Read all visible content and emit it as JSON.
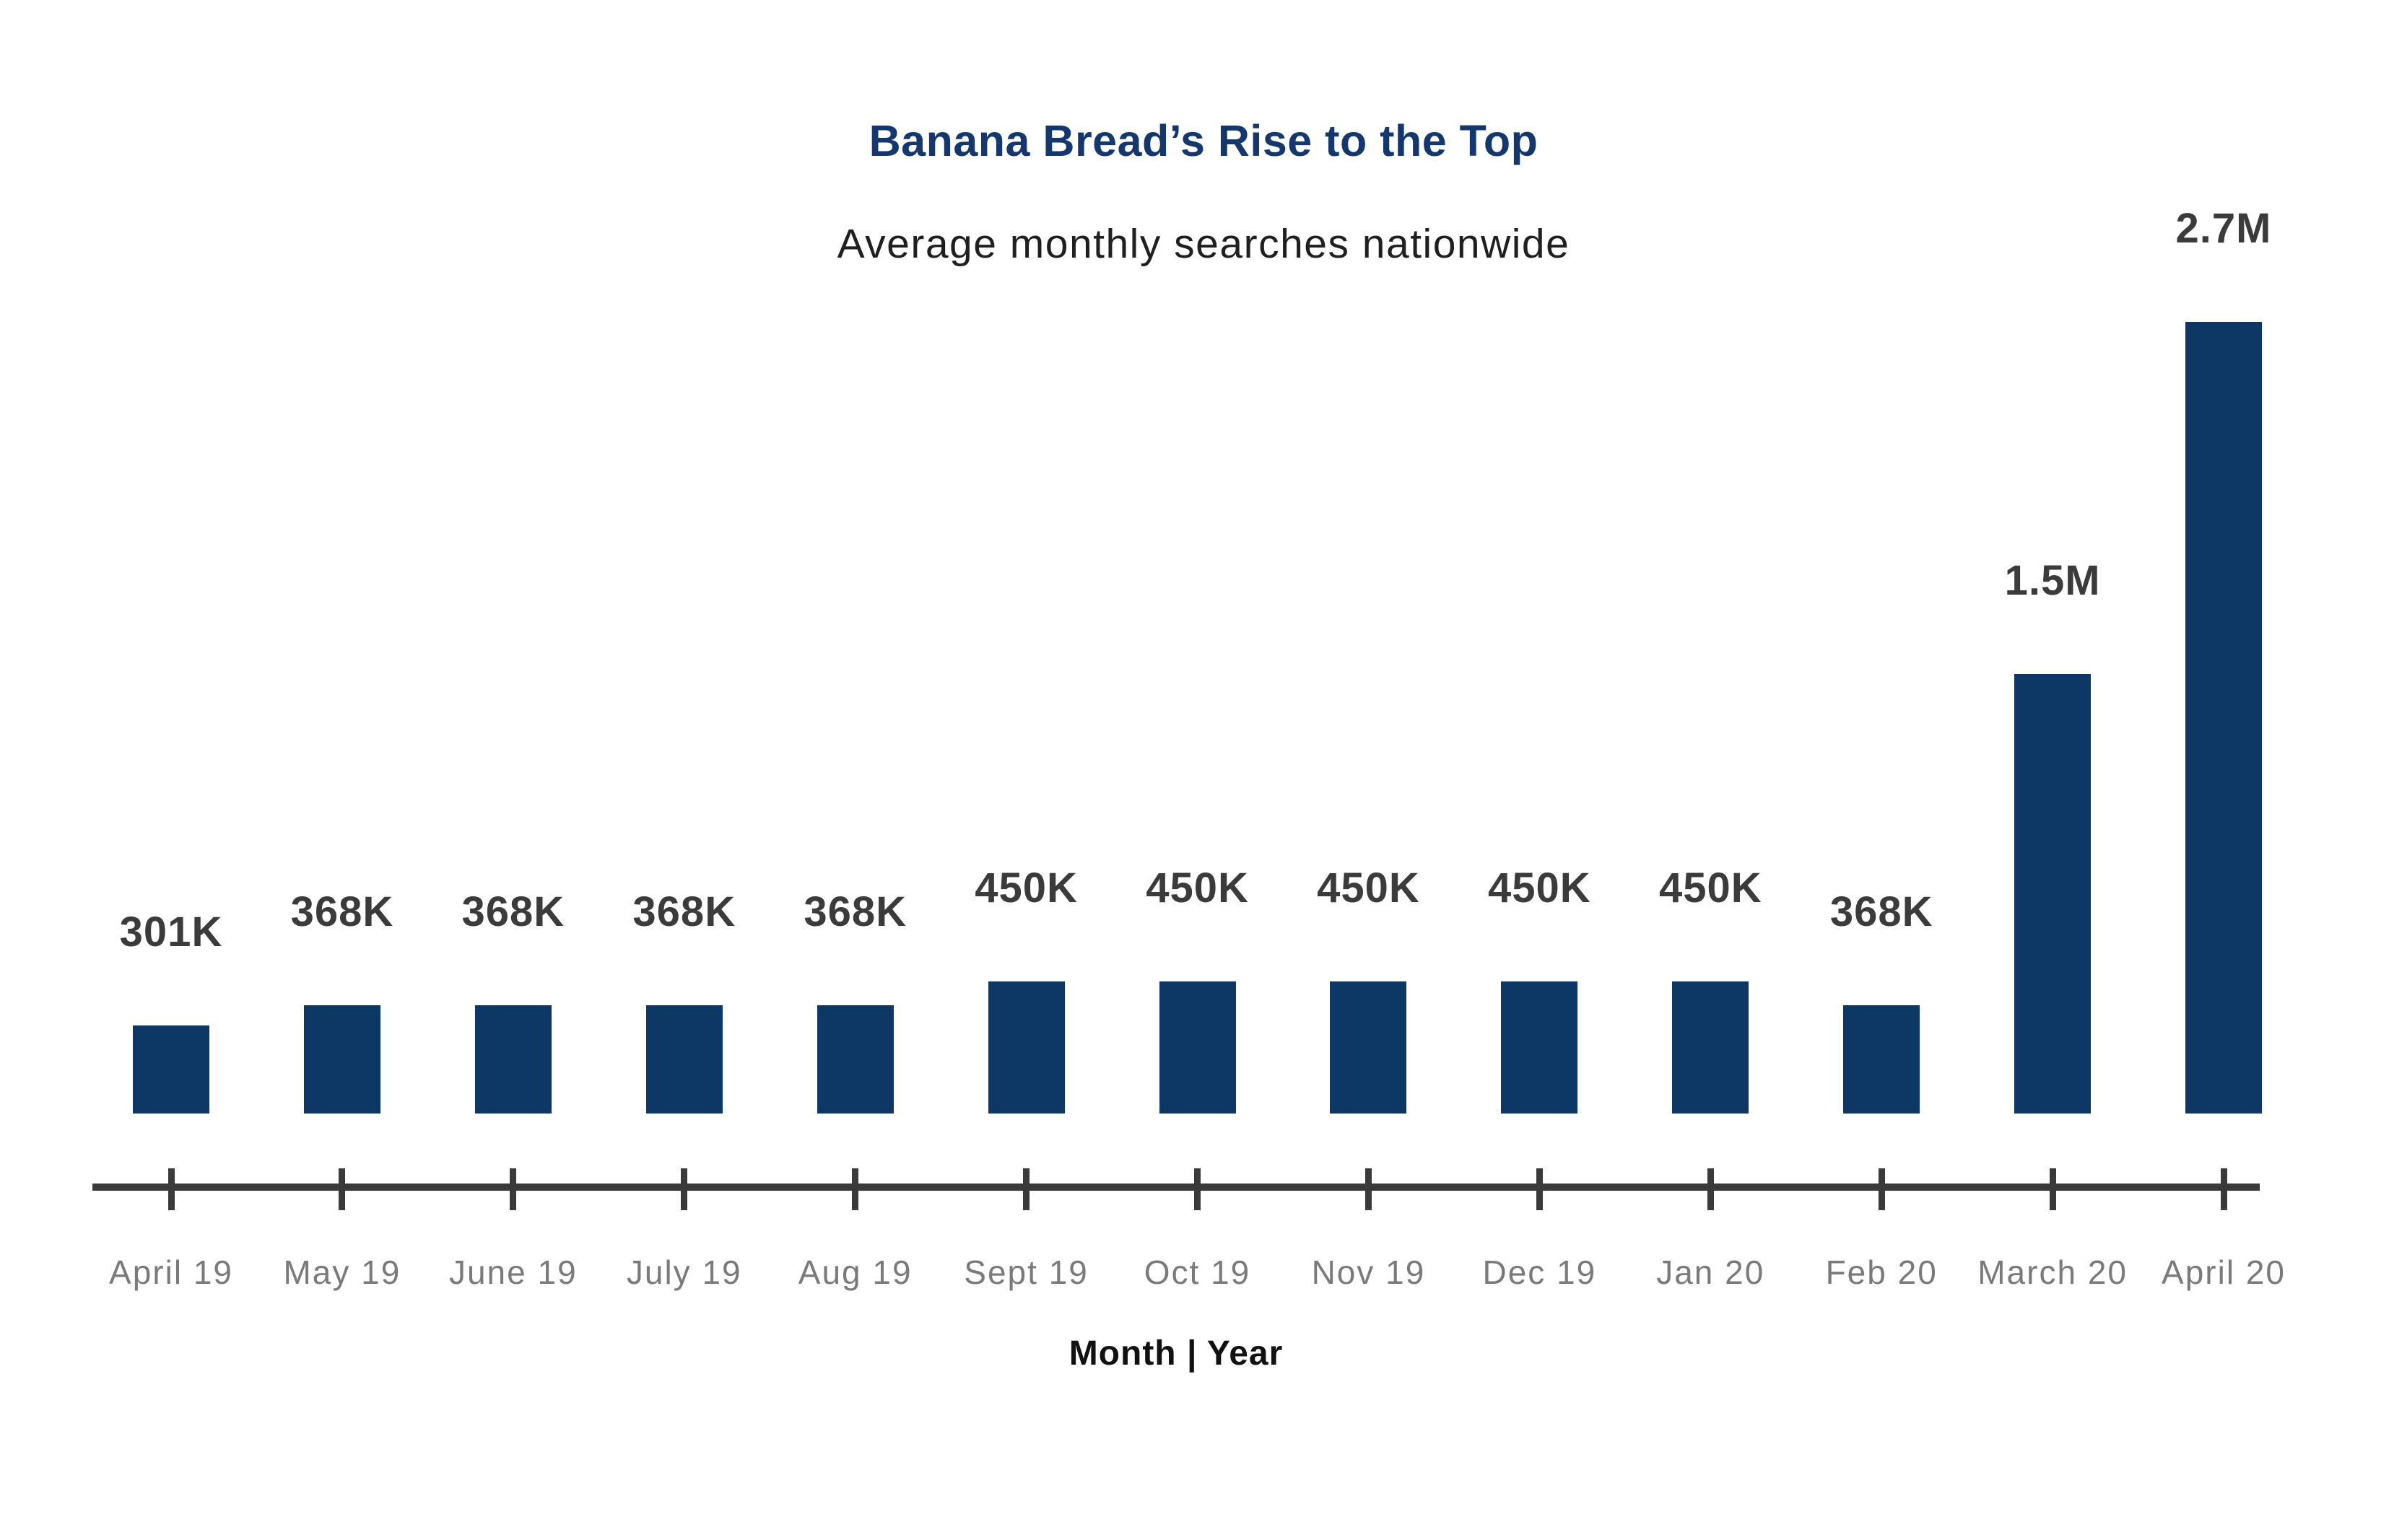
{
  "chart_data": {
    "type": "bar",
    "title": "Banana Bread’s Rise to the Top",
    "subtitle": "Average monthly searches nationwide",
    "xlabel": "Month | Year",
    "ylabel": "",
    "categories": [
      "April 19",
      "May 19",
      "June 19",
      "July 19",
      "Aug 19",
      "Sept 19",
      "Oct 19",
      "Nov 19",
      "Dec 19",
      "Jan 20",
      "Feb 20",
      "March 20",
      "April 20"
    ],
    "values": [
      301000,
      368000,
      368000,
      368000,
      368000,
      450000,
      450000,
      450000,
      450000,
      450000,
      368000,
      1500000,
      2700000
    ],
    "value_labels": [
      "301K",
      "368K",
      "368K",
      "368K",
      "368K",
      "450K",
      "450K",
      "450K",
      "450K",
      "450K",
      "368K",
      "1.5M",
      "2.7M"
    ],
    "ylim": [
      0,
      2700000
    ],
    "grid": false,
    "legend_position": "none"
  },
  "colors": {
    "bar": "#0d3866",
    "title": "#14386e",
    "subtitle": "#1f1f1f",
    "value_label": "#3b3b3b",
    "axis": "#3a3a3a",
    "tick_label": "#7a7a7a",
    "axis_title": "#111111"
  }
}
